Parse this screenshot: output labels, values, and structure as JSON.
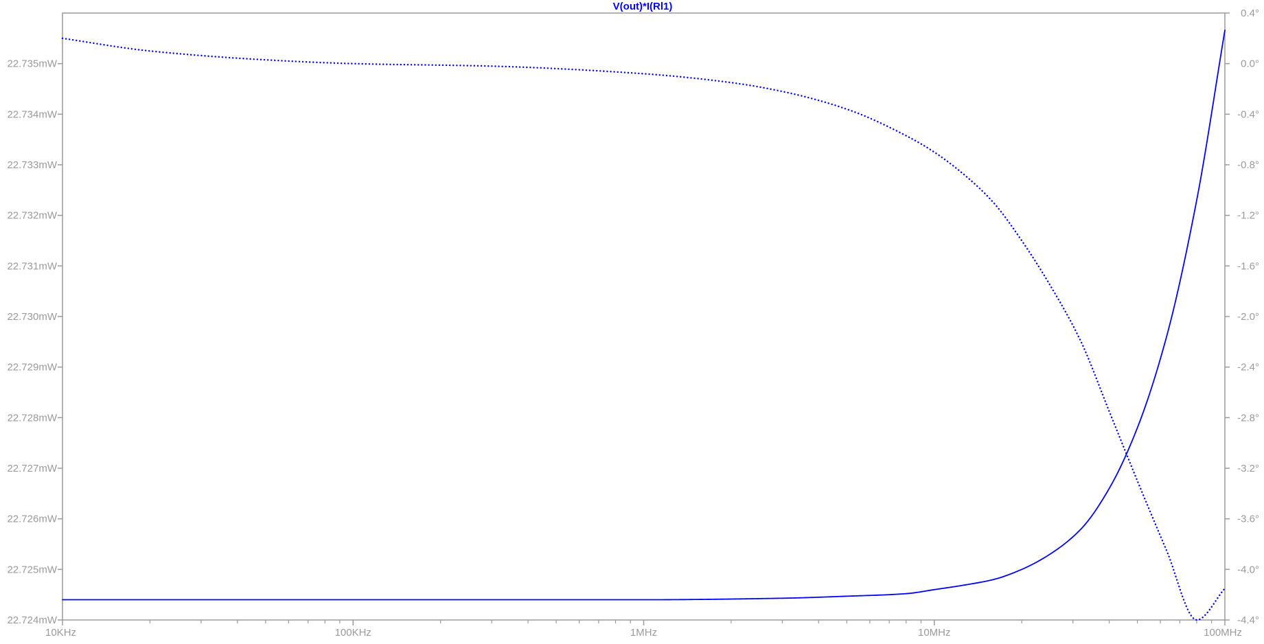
{
  "chart_data": {
    "type": "line",
    "title": "V(out)*I(Rl1)",
    "title_color": "#0000ff",
    "x_scale": "log",
    "xlim": [
      10000,
      100000000
    ],
    "x_tick_values": [
      10000,
      100000,
      1000000,
      10000000,
      100000000
    ],
    "x_tick_labels": [
      "10KHz",
      "100KHz",
      "1MHz",
      "10MHz",
      "100MHz"
    ],
    "ylim_left": [
      22.724,
      22.736
    ],
    "y_left_tick_values": [
      22.724,
      22.725,
      22.726,
      22.727,
      22.728,
      22.729,
      22.73,
      22.731,
      22.732,
      22.733,
      22.734,
      22.735
    ],
    "y_left_tick_labels": [
      "22.724mW",
      "22.725mW",
      "22.726mW",
      "22.727mW",
      "22.728mW",
      "22.729mW",
      "22.730mW",
      "22.731mW",
      "22.732mW",
      "22.733mW",
      "22.734mW",
      "22.735mW"
    ],
    "ylim_right": [
      -4.4,
      0.4
    ],
    "y_right_tick_values": [
      -4.4,
      -4.0,
      -3.6,
      -3.2,
      -2.8,
      -2.4,
      -2.0,
      -1.6,
      -1.2,
      -0.8,
      -0.4,
      0.0,
      0.4
    ],
    "y_right_tick_labels": [
      "-4.4°",
      "-4.0°",
      "-3.6°",
      "-3.2°",
      "-2.8°",
      "-2.4°",
      "-2.0°",
      "-1.6°",
      "-1.2°",
      "-0.8°",
      "-0.4°",
      "0.0°",
      "0.4°"
    ],
    "grid": false,
    "series": [
      {
        "axis": "left",
        "style": "solid",
        "color": "#0000ff",
        "x": [
          10000,
          100000,
          1000000,
          3000000,
          5000000,
          8000000,
          10000000,
          13000000,
          16000000,
          20000000,
          25000000,
          32000000,
          40000000,
          50000000,
          63000000,
          80000000,
          100000000
        ],
        "y": [
          22.7244,
          22.7244,
          22.7244,
          22.72443,
          22.72447,
          22.72452,
          22.7246,
          22.7247,
          22.7248,
          22.725,
          22.7253,
          22.7258,
          22.7266,
          22.7278,
          22.7296,
          22.7323,
          22.73566
        ]
      },
      {
        "axis": "right",
        "style": "dotted",
        "color": "#0000ff",
        "x": [
          10000,
          20000,
          50000,
          100000,
          300000,
          1000000,
          2000000,
          3000000,
          5000000,
          8000000,
          10000000,
          13000000,
          16000000,
          20000000,
          25000000,
          32000000,
          40000000,
          50000000,
          63000000,
          80000000,
          100000000
        ],
        "y": [
          0.2,
          0.1,
          0.03,
          0.0,
          -0.02,
          -0.08,
          -0.15,
          -0.22,
          -0.36,
          -0.57,
          -0.7,
          -0.9,
          -1.1,
          -1.4,
          -1.75,
          -2.2,
          -2.75,
          -3.3,
          -3.85,
          -4.4,
          -4.15
        ]
      }
    ]
  }
}
